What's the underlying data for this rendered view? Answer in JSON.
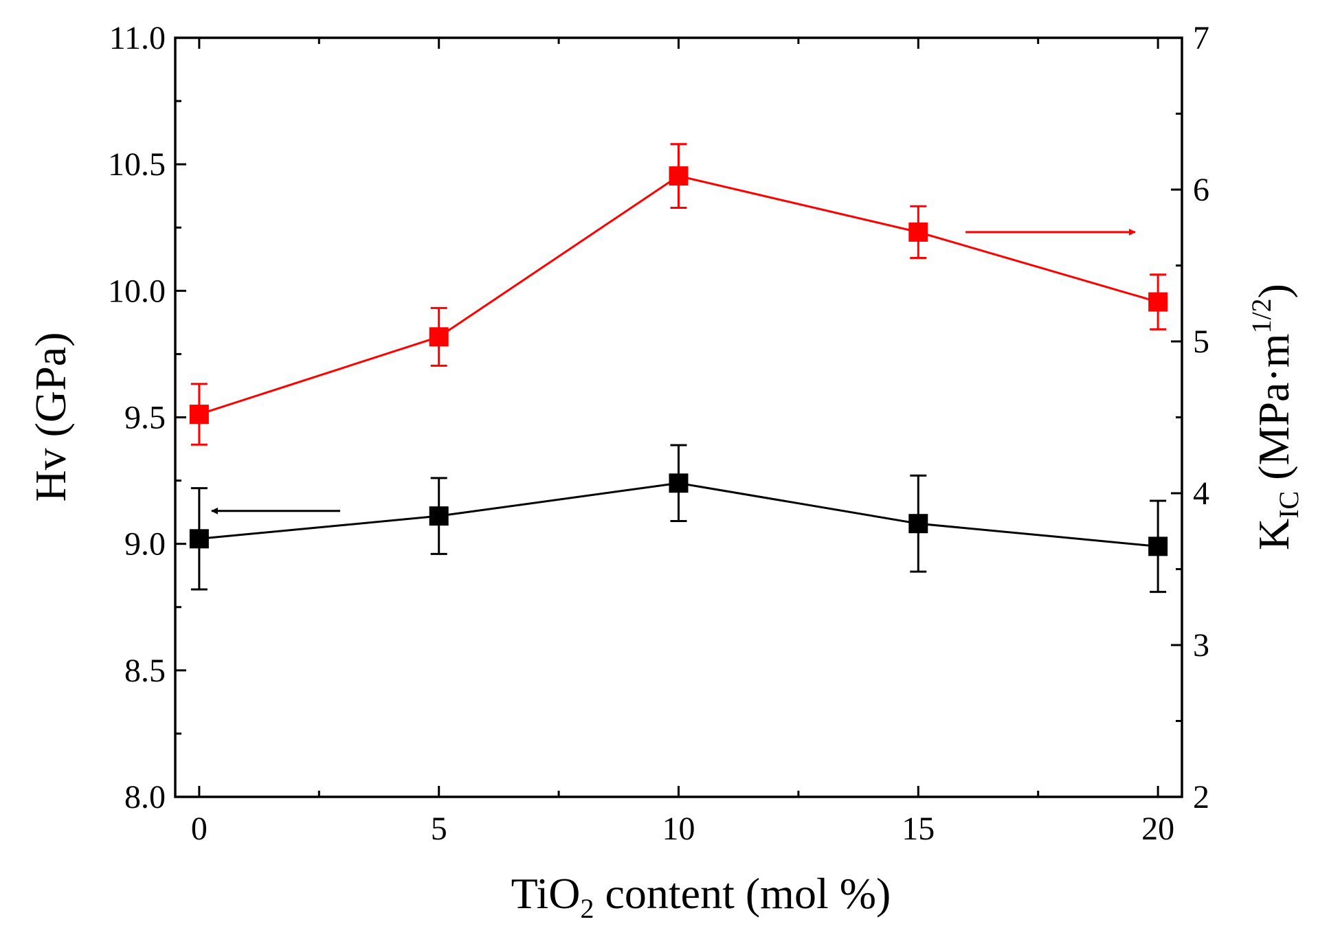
{
  "chart_data": {
    "type": "line",
    "title": "",
    "x": [
      0,
      5,
      10,
      15,
      20
    ],
    "xlim": [
      -0.5,
      20.5
    ],
    "xticks": [
      0,
      5,
      10,
      15,
      20
    ],
    "xlabel": {
      "pre": "TiO",
      "sub": "2",
      "post": " content (mol %)"
    },
    "ylabel": "Hv (GPa)",
    "ylim": [
      8.0,
      11.0
    ],
    "yticks": [
      "8.0",
      "8.5",
      "9.0",
      "9.5",
      "10.0",
      "10.5",
      "11.0"
    ],
    "y2label": {
      "pre": "K",
      "sub": "IC",
      "mid": " (MPa·m",
      "sup": "1/2",
      "post": ")"
    },
    "y2lim": [
      2,
      7
    ],
    "y2ticks": [
      "2",
      "3",
      "4",
      "5",
      "6",
      "7"
    ],
    "series": [
      {
        "name": "Hv",
        "axis": "left",
        "color": "#000000",
        "values": [
          9.02,
          9.11,
          9.24,
          9.08,
          8.99
        ],
        "errors": [
          0.2,
          0.15,
          0.15,
          0.19,
          0.18
        ],
        "arrow_direction": "left"
      },
      {
        "name": "KIC",
        "axis": "right",
        "color": "#ff0000",
        "values": [
          4.52,
          5.03,
          6.09,
          5.72,
          5.26
        ],
        "errors": [
          0.2,
          0.19,
          0.21,
          0.17,
          0.18
        ],
        "arrow_direction": "right"
      }
    ]
  }
}
